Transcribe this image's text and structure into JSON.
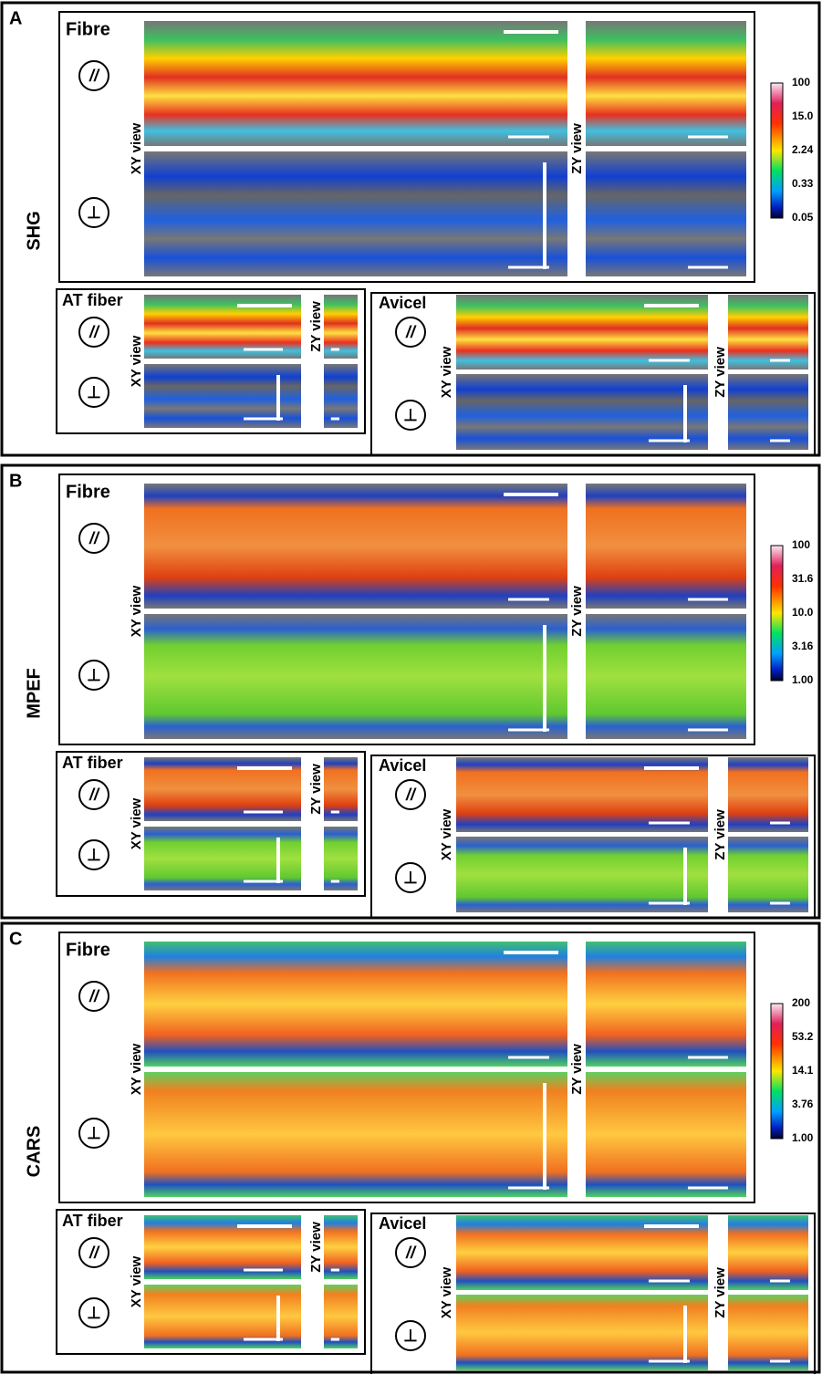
{
  "panels": [
    {
      "letter": "A",
      "modality": "SHG",
      "colorbar": [
        "100",
        "15.0",
        "2.24",
        "0.33",
        "0.05"
      ],
      "fibre": {
        "title": "Fibre",
        "parallel": "//",
        "perpendicular": "⊥",
        "xy_label": "XY view",
        "zy_label": "ZY view"
      },
      "at_fiber": {
        "title": "AT fiber",
        "parallel": "//",
        "perpendicular": "⊥",
        "xy_label": "XY view",
        "zy_label": "ZY view"
      },
      "avicel": {
        "title": "Avicel",
        "parallel": "//",
        "perpendicular": "⊥",
        "xy_label": "XY view",
        "zy_label": "ZY view"
      }
    },
    {
      "letter": "B",
      "modality": "MPEF",
      "colorbar": [
        "100",
        "31.6",
        "10.0",
        "3.16",
        "1.00"
      ],
      "fibre": {
        "title": "Fibre",
        "parallel": "//",
        "perpendicular": "⊥",
        "xy_label": "XY view",
        "zy_label": "ZY view"
      },
      "at_fiber": {
        "title": "AT fiber",
        "parallel": "//",
        "perpendicular": "⊥",
        "xy_label": "XY view",
        "zy_label": "ZY view"
      },
      "avicel": {
        "title": "Avicel",
        "parallel": "//",
        "perpendicular": "⊥",
        "xy_label": "XY view",
        "zy_label": "ZY view"
      }
    },
    {
      "letter": "C",
      "modality": "CARS",
      "colorbar": [
        "200",
        "53.2",
        "14.1",
        "3.76",
        "1.00"
      ],
      "fibre": {
        "title": "Fibre",
        "parallel": "//",
        "perpendicular": "⊥",
        "xy_label": "XY view",
        "zy_label": "ZY view"
      },
      "at_fiber": {
        "title": "AT fiber",
        "parallel": "//",
        "perpendicular": "⊥",
        "xy_label": "XY view",
        "zy_label": "ZY view"
      },
      "avicel": {
        "title": "Avicel",
        "parallel": "//",
        "perpendicular": "⊥",
        "xy_label": "XY view",
        "zy_label": "ZY view"
      }
    }
  ]
}
